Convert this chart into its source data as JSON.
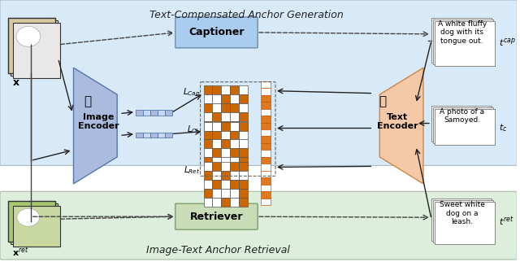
{
  "fig_width": 6.4,
  "fig_height": 3.22,
  "dpi": 100,
  "bg_top": "#ddeeff",
  "bg_bottom": "#e8f0e0",
  "bg_middle_color": "#f0f0f0",
  "title_top": "Text-Compensated Anchor Generation",
  "title_bottom": "Image-Text Anchor Retrieval",
  "captioner_color": "#aaccee",
  "retriever_color": "#c8ddb8",
  "image_encoder_color": "#aabbdd",
  "text_encoder_color": "#f5c8a8",
  "matrix_brown": "#b35a00",
  "matrix_fill": "#cc6600",
  "vector_fill": "#e07820",
  "vector_border": "#cc5500",
  "arrow_color": "#222222",
  "dashed_color": "#444444",
  "label_lcap": "L_{Cap}",
  "label_lcl": "L_{CL}",
  "label_lret": "L_{Ret}",
  "text_caption": "A white fluffy\ndog with its\ntongue out.",
  "text_tc": "A photo of a\nSamoyed.",
  "text_tret": "Sweet white\ndog on a\nleash.",
  "label_x": "x",
  "label_xret": "x^{ret}",
  "label_tcap": "t^{cap}",
  "label_tc": "t_c",
  "label_tret": "t^{ret}"
}
